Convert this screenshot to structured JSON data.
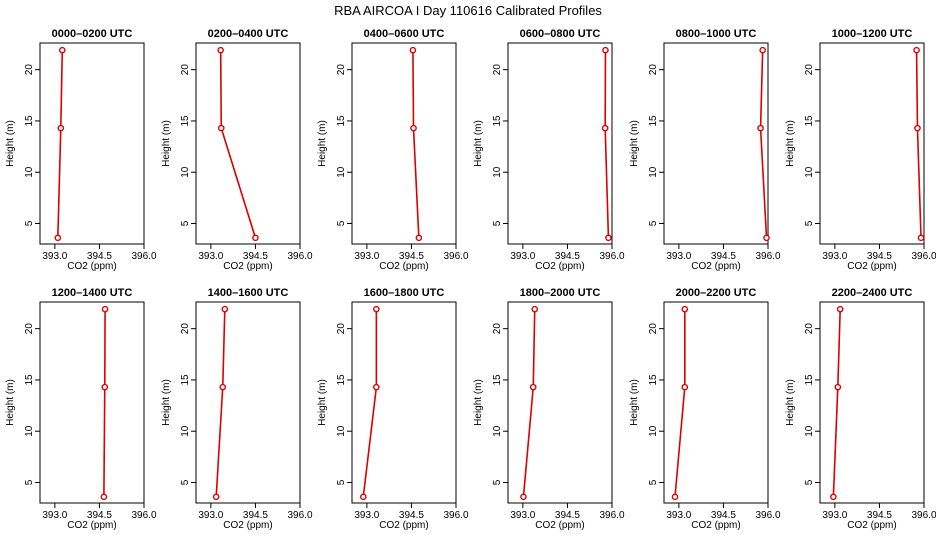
{
  "title": "RBA AIRCOA I  Day 110616  Calibrated Profiles",
  "colors": {
    "profile": "#dd0000",
    "axis": "#000000"
  },
  "chart_data": {
    "type": "line",
    "xlabel": "CO2 (ppm)",
    "ylabel": "Height (m)",
    "xlim": [
      392.5,
      396.0
    ],
    "ylim": [
      3.0,
      22.6
    ],
    "xticks": [
      393.0,
      394.5,
      396.0
    ],
    "xtick_labels": [
      "393.0",
      "394.5",
      "396.0"
    ],
    "yticks": [
      5,
      10,
      15,
      20
    ],
    "ytick_labels": [
      "5",
      "10",
      "15",
      "20"
    ],
    "heights": [
      3.6,
      14.3,
      21.9
    ],
    "panels": [
      {
        "title": "0000–0200 UTC",
        "co2": [
          393.1,
          393.2,
          393.25
        ]
      },
      {
        "title": "0200–0400 UTC",
        "co2": [
          394.5,
          393.35,
          393.33
        ]
      },
      {
        "title": "0400–0600 UTC",
        "co2": [
          394.75,
          394.57,
          394.55
        ]
      },
      {
        "title": "0600–0800 UTC",
        "co2": [
          395.88,
          395.77,
          395.78
        ]
      },
      {
        "title": "0800–1000 UTC",
        "co2": [
          395.95,
          395.75,
          395.82
        ]
      },
      {
        "title": "1000–1200 UTC",
        "co2": [
          395.9,
          395.78,
          395.75
        ]
      },
      {
        "title": "1200–1400 UTC",
        "co2": [
          394.65,
          394.68,
          394.69
        ]
      },
      {
        "title": "1400–1600 UTC",
        "co2": [
          393.18,
          393.4,
          393.47
        ]
      },
      {
        "title": "1600–1800 UTC",
        "co2": [
          392.88,
          393.32,
          393.32
        ]
      },
      {
        "title": "1800–2000 UTC",
        "co2": [
          393.02,
          393.35,
          393.4
        ]
      },
      {
        "title": "2000–2200 UTC",
        "co2": [
          392.87,
          393.2,
          393.2
        ]
      },
      {
        "title": "2200–2400 UTC",
        "co2": [
          392.95,
          393.1,
          393.18
        ]
      }
    ]
  }
}
